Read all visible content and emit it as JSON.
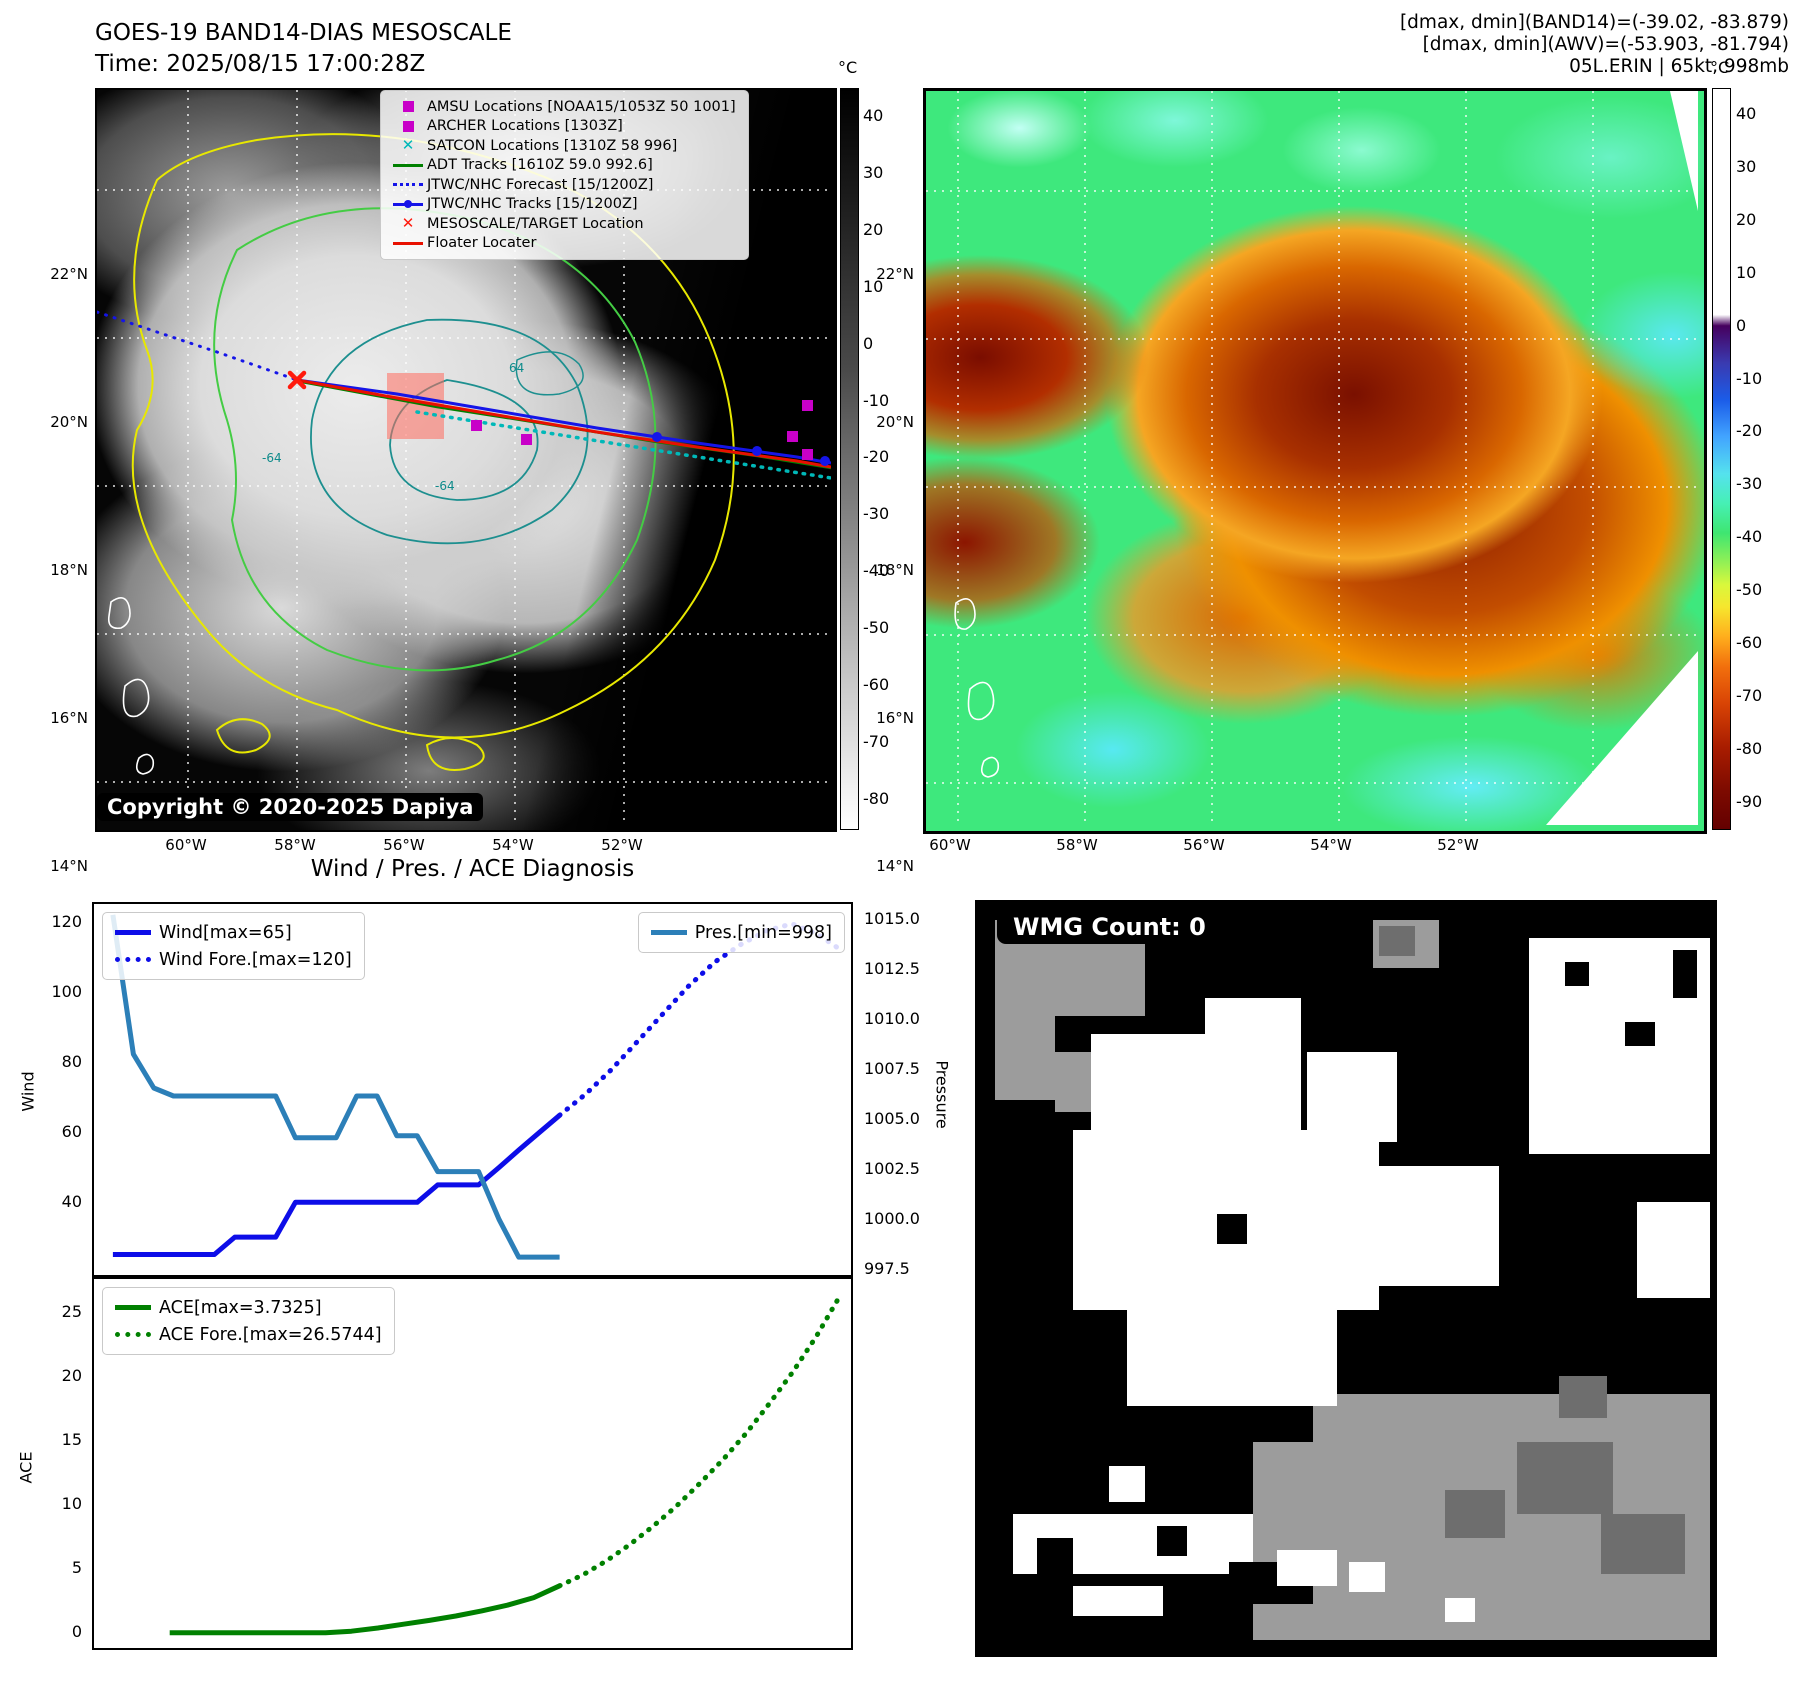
{
  "panel_tl": {
    "title_line1": "GOES-19 BAND14-DIAS MESOSCALE",
    "title_line2": "Time: 2025/08/15 17:00:28Z",
    "copyright": "Copyright © 2020-2025 Dapiya",
    "colorbar_unit": "°C",
    "colorbar_ticks": [
      "40",
      "30",
      "20",
      "10",
      "0",
      "-10",
      "-20",
      "-30",
      "-40",
      "-50",
      "-60",
      "-70",
      "-80"
    ],
    "lat_labels": [
      "22°N",
      "20°N",
      "18°N",
      "16°N",
      "14°N"
    ],
    "lon_labels": [
      "60°W",
      "58°W",
      "56°W",
      "54°W",
      "52°W"
    ],
    "contour_labels": [
      "-64",
      "-64",
      "64"
    ],
    "legend": [
      {
        "label": "AMSU Locations [NOAA15/1053Z 50 1001]",
        "marker": "magenta-square"
      },
      {
        "label": "ARCHER Locations [1303Z]",
        "marker": "magenta-square"
      },
      {
        "label": "SATCON Locations [1310Z 58 996]",
        "marker": "cyan-x"
      },
      {
        "label": "ADT Tracks [1610Z 59.0 992.6]",
        "marker": "green-line"
      },
      {
        "label": "JTWC/NHC Forecast [15/1200Z]",
        "marker": "blue-dotted"
      },
      {
        "label": "JTWC/NHC Tracks [15/1200Z]",
        "marker": "blue-line-dot"
      },
      {
        "label": "MESOSCALE/TARGET Location",
        "marker": "red-x"
      },
      {
        "label": "Floater Locater",
        "marker": "red-line"
      }
    ]
  },
  "panel_tr": {
    "header_line1": "[dmax, dmin](BAND14)=(-39.02, -83.879)",
    "header_line2": "[dmax, dmin](AWV)=(-53.903, -81.794)",
    "header_line3": "05L.ERIN | 65kt, 998mb",
    "colorbar_unit": "°C",
    "colorbar_ticks": [
      "40",
      "30",
      "20",
      "10",
      "0",
      "-10",
      "-20",
      "-30",
      "-40",
      "-50",
      "-60",
      "-70",
      "-80",
      "-90"
    ],
    "lat_labels": [
      "22°N",
      "20°N",
      "18°N",
      "16°N",
      "14°N"
    ],
    "lon_labels": [
      "60°W",
      "58°W",
      "56°W",
      "54°W",
      "52°W"
    ]
  },
  "charts": {
    "suptitle": "Wind / Pres. / ACE Diagnosis"
  },
  "panel_br": {
    "wmg_label": "WMG Count: 0"
  },
  "colors": {
    "wind": "#0d0de8",
    "pressure": "#2c7fb8",
    "ace": "#008000",
    "amsu_magenta": "#c800c8",
    "satcon_cyan": "#00b8b8",
    "target_red": "#ff1a0d",
    "adt_green": "#008000"
  },
  "chart_data": [
    {
      "type": "line",
      "title": "Wind / Pres. / ACE Diagnosis",
      "ylabel_left": "Wind",
      "ylabel_right": "Pressure",
      "yticks_left": [
        "120",
        "100",
        "80",
        "60",
        "40"
      ],
      "yticks_right": [
        "1015.0",
        "1012.5",
        "1010.0",
        "1007.5",
        "1005.0",
        "1002.5",
        "1000.0",
        "997.5"
      ],
      "axes": {
        "left": {
          "min": 19.1,
          "max": 125.7
        },
        "right": {
          "min": 997.2,
          "max": 1015.85
        }
      },
      "legend_left": [
        "Wind[max=65]",
        "Wind Fore.[max=120]"
      ],
      "legend_right": [
        "Pres.[min=998]"
      ],
      "series": [
        {
          "name": "Wind[max=65]",
          "axis": "left",
          "style": "solid",
          "color": "#0d0de8",
          "width": 5,
          "x": [
            0.025,
            0.052,
            0.079,
            0.105,
            0.132,
            0.159,
            0.186,
            0.213,
            0.24,
            0.266,
            0.293,
            0.32,
            0.347,
            0.374,
            0.4,
            0.427,
            0.454,
            0.481,
            0.508,
            0.535,
            0.561,
            0.588,
            0.615
          ],
          "y": [
            25,
            25,
            25,
            25,
            25,
            25,
            30,
            30,
            30,
            40,
            40,
            40,
            40,
            40,
            40,
            40,
            45,
            45,
            45,
            50,
            55,
            60,
            65
          ]
        },
        {
          "name": "Wind Fore.[max=120]",
          "axis": "left",
          "style": "dotted",
          "color": "#0d0de8",
          "width": 5,
          "x": [
            0.615,
            0.649,
            0.683,
            0.717,
            0.751,
            0.785,
            0.82,
            0.854,
            0.888,
            0.922,
            0.956,
            0.99
          ],
          "y": [
            65,
            71,
            78,
            86,
            94,
            102,
            109,
            114,
            118,
            120,
            117,
            112
          ]
        },
        {
          "name": "Pres.[min=998]",
          "axis": "right",
          "style": "solid",
          "color": "#2c7fb8",
          "width": 5,
          "x": [
            0.025,
            0.052,
            0.079,
            0.105,
            0.132,
            0.159,
            0.186,
            0.213,
            0.24,
            0.266,
            0.293,
            0.32,
            0.347,
            0.374,
            0.4,
            0.427,
            0.454,
            0.481,
            0.508,
            0.535,
            0.561,
            0.588,
            0.615
          ],
          "y": [
            1015.3,
            1008.3,
            1006.6,
            1006.2,
            1006.2,
            1006.2,
            1006.2,
            1006.2,
            1006.2,
            1004.1,
            1004.1,
            1004.1,
            1006.2,
            1006.2,
            1004.2,
            1004.2,
            1002.4,
            1002.4,
            1002.4,
            1000.0,
            998.1,
            998.1,
            998.1
          ]
        }
      ]
    },
    {
      "type": "line",
      "ylabel_left": "ACE",
      "yticks_left": [
        "25",
        "20",
        "15",
        "10",
        "5",
        "0"
      ],
      "axes": {
        "left": {
          "min": -1.18,
          "max": 27.95
        }
      },
      "legend_left": [
        "ACE[max=3.7325]",
        "ACE Fore.[max=26.5744]"
      ],
      "series": [
        {
          "name": "ACE[max=3.7325]",
          "axis": "left",
          "style": "solid",
          "color": "#008000",
          "width": 5,
          "x": [
            0.1,
            0.134,
            0.169,
            0.203,
            0.237,
            0.272,
            0.306,
            0.34,
            0.375,
            0.409,
            0.443,
            0.478,
            0.512,
            0.546,
            0.581,
            0.615
          ],
          "y": [
            0.02,
            0.02,
            0.02,
            0.02,
            0.02,
            0.02,
            0.02,
            0.15,
            0.4,
            0.7,
            1.0,
            1.35,
            1.75,
            2.2,
            2.8,
            3.73
          ]
        },
        {
          "name": "ACE Fore.[max=26.5744]",
          "axis": "left",
          "style": "dotted",
          "color": "#008000",
          "width": 5,
          "x": [
            0.615,
            0.646,
            0.677,
            0.708,
            0.738,
            0.769,
            0.8,
            0.831,
            0.862,
            0.892,
            0.923,
            0.954,
            0.985
          ],
          "y": [
            3.73,
            4.6,
            5.7,
            7.0,
            8.4,
            10.0,
            11.8,
            13.7,
            15.8,
            18.1,
            20.6,
            23.4,
            26.57
          ]
        }
      ]
    }
  ]
}
